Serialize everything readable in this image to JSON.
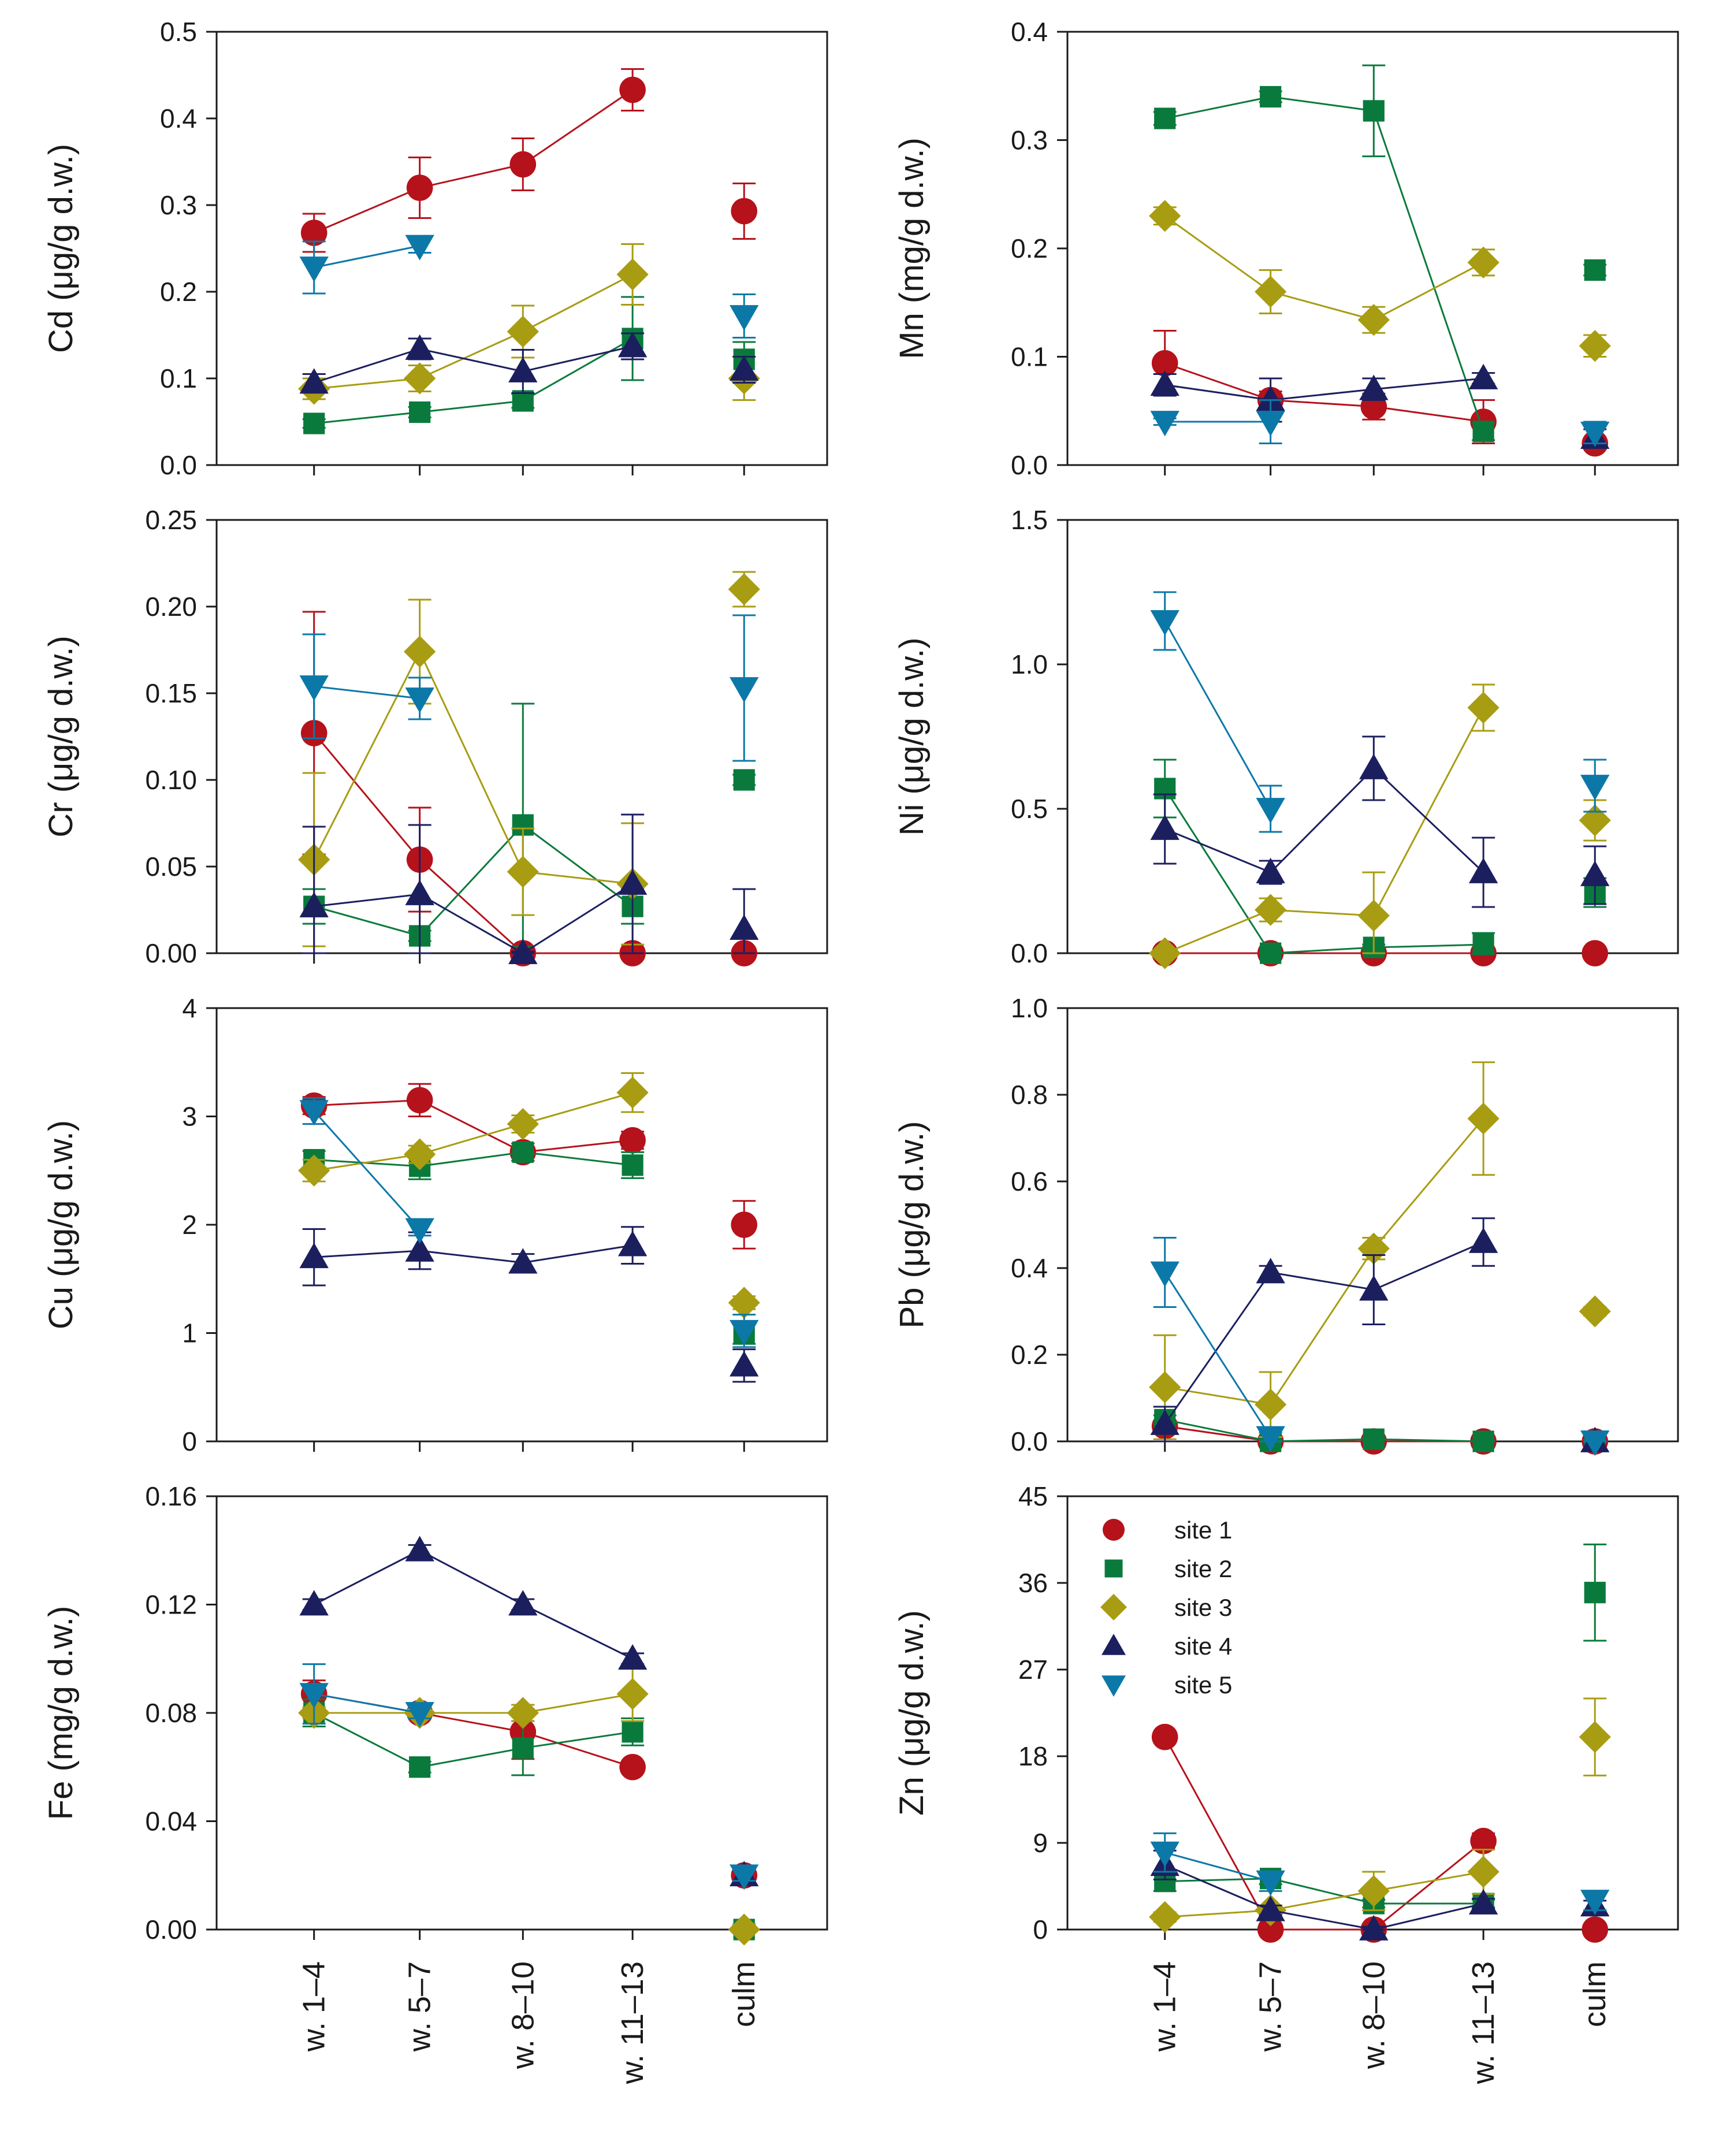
{
  "figure": {
    "description": "Eight panels of element concentrations by leaf group and culm, five sites"
  },
  "colors": {
    "site 1": "#b5121b",
    "site 2": "#0a7a3c",
    "site 3": "#a89c12",
    "site 4": "#1c1f5e",
    "site 5": "#0c78a8"
  },
  "markers": {
    "site 1": "circle",
    "site 2": "square",
    "site 3": "diamond",
    "site 4": "triangle-up",
    "site 5": "triangle-down"
  },
  "chart_data": [
    {
      "type": "line",
      "panel": "Cd",
      "ylabel": "Cd (μg/g d.w.)",
      "ylim": [
        0,
        0.5
      ],
      "yticks": [
        "0.0",
        "0.1",
        "0.2",
        "0.3",
        "0.4",
        "0.5"
      ],
      "categories": [
        "w. 1–4",
        "w. 5–7",
        "w. 8–10",
        "w. 11–13",
        "culm"
      ],
      "series": [
        {
          "name": "site 1",
          "values": [
            0.268,
            0.32,
            0.347,
            0.433,
            0.293
          ],
          "errors": [
            0.022,
            0.035,
            0.03,
            0.024,
            0.032
          ]
        },
        {
          "name": "site 2",
          "values": [
            0.048,
            0.061,
            0.074,
            0.146,
            0.122
          ],
          "errors": [
            0.005,
            0.006,
            0.008,
            0.048,
            0.02
          ]
        },
        {
          "name": "site 3",
          "values": [
            0.088,
            0.1,
            0.154,
            0.22,
            0.1
          ],
          "errors": [
            0.012,
            0.015,
            0.03,
            0.035,
            0.025
          ]
        },
        {
          "name": "site 4",
          "values": [
            0.095,
            0.134,
            0.108,
            0.137,
            0.11
          ],
          "errors": [
            0.01,
            0.012,
            0.025,
            0.015,
            0.015
          ]
        },
        {
          "name": "site 5",
          "values": [
            0.228,
            0.253,
            null,
            null,
            0.172
          ],
          "errors": [
            0.03,
            0.008,
            null,
            null,
            0.025
          ]
        }
      ]
    },
    {
      "type": "line",
      "panel": "Mn",
      "ylabel": "Mn (mg/g d.w.)",
      "ylim": [
        0,
        0.4
      ],
      "yticks": [
        "0.0",
        "0.1",
        "0.2",
        "0.3",
        "0.4"
      ],
      "categories": [
        "w. 1–4",
        "w. 5–7",
        "w. 8–10",
        "w. 11–13",
        "culm"
      ],
      "series": [
        {
          "name": "site 1",
          "values": [
            0.094,
            0.06,
            0.054,
            0.04,
            0.02
          ],
          "errors": [
            0.03,
            0.008,
            0.012,
            0.02,
            0.005
          ]
        },
        {
          "name": "site 2",
          "values": [
            0.32,
            0.34,
            0.327,
            0.031,
            0.18
          ],
          "errors": [
            0.006,
            0.005,
            0.042,
            0.008,
            0.005
          ]
        },
        {
          "name": "site 3",
          "values": [
            0.23,
            0.16,
            0.134,
            0.187,
            0.11
          ],
          "errors": [
            0.008,
            0.02,
            0.012,
            0.012,
            0.01
          ]
        },
        {
          "name": "site 4",
          "values": [
            0.074,
            0.06,
            0.07,
            0.08,
            0.025
          ],
          "errors": [
            0.01,
            0.02,
            0.01,
            0.005,
            0.008
          ]
        },
        {
          "name": "site 5",
          "values": [
            0.04,
            0.04,
            null,
            null,
            0.03
          ],
          "errors": [
            0.003,
            0.02,
            null,
            null,
            0.01
          ]
        }
      ]
    },
    {
      "type": "line",
      "panel": "Cr",
      "ylabel": "Cr (μg/g d.w.)",
      "ylim": [
        0,
        0.25
      ],
      "yticks": [
        "0.00",
        "0.05",
        "0.10",
        "0.15",
        "0.20",
        "0.25"
      ],
      "categories": [
        "w. 1–4",
        "w. 5–7",
        "w. 8–10",
        "w. 11–13",
        "culm"
      ],
      "series": [
        {
          "name": "site 1",
          "values": [
            0.127,
            0.054,
            0.0,
            0.0,
            0.0
          ],
          "errors": [
            0.07,
            0.03,
            0.001,
            0.001,
            0.001
          ]
        },
        {
          "name": "site 2",
          "values": [
            0.027,
            0.01,
            0.074,
            0.027,
            0.1
          ],
          "errors": [
            0.01,
            0.003,
            0.07,
            0.01,
            0.003
          ]
        },
        {
          "name": "site 3",
          "values": [
            0.054,
            0.174,
            0.047,
            0.04,
            0.21
          ],
          "errors": [
            0.05,
            0.03,
            0.025,
            0.035,
            0.01
          ]
        },
        {
          "name": "site 4",
          "values": [
            0.027,
            0.034,
            0.0,
            0.04,
            0.014
          ],
          "errors": [
            0.046,
            0.04,
            0.001,
            0.04,
            0.023
          ]
        },
        {
          "name": "site 5",
          "values": [
            0.154,
            0.147,
            null,
            null,
            0.153
          ],
          "errors": [
            0.03,
            0.012,
            null,
            null,
            0.042
          ]
        }
      ]
    },
    {
      "type": "line",
      "panel": "Ni",
      "ylabel": "Ni (μg/g d.w.)",
      "ylim": [
        0,
        1.5
      ],
      "yticks": [
        "0.0",
        "0.5",
        "1.0",
        "1.5"
      ],
      "categories": [
        "w. 1–4",
        "w. 5–7",
        "w. 8–10",
        "w. 11–13",
        "culm"
      ],
      "series": [
        {
          "name": "site 1",
          "values": [
            0.0,
            0.0,
            0.0,
            0.0,
            0.0
          ],
          "errors": [
            0.003,
            0.003,
            0.003,
            0.003,
            0.003
          ]
        },
        {
          "name": "site 2",
          "values": [
            0.57,
            0.0,
            0.02,
            0.03,
            0.21
          ],
          "errors": [
            0.1,
            0.003,
            0.01,
            0.04,
            0.05
          ]
        },
        {
          "name": "site 3",
          "values": [
            0.0,
            0.15,
            0.13,
            0.85,
            0.46
          ],
          "errors": [
            0.003,
            0.04,
            0.15,
            0.08,
            0.07
          ]
        },
        {
          "name": "site 4",
          "values": [
            0.43,
            0.28,
            0.64,
            0.28,
            0.27
          ],
          "errors": [
            0.12,
            0.04,
            0.11,
            0.12,
            0.1
          ]
        },
        {
          "name": "site 5",
          "values": [
            1.15,
            0.5,
            null,
            null,
            0.58
          ],
          "errors": [
            0.1,
            0.08,
            null,
            null,
            0.09
          ]
        }
      ]
    },
    {
      "type": "line",
      "panel": "Cu",
      "ylabel": "Cu (μg/g d.w.)",
      "ylim": [
        0,
        4
      ],
      "yticks": [
        "0",
        "1",
        "2",
        "3",
        "4"
      ],
      "categories": [
        "w. 1–4",
        "w. 5–7",
        "w. 8–10",
        "w. 11–13",
        "culm"
      ],
      "series": [
        {
          "name": "site 1",
          "values": [
            3.1,
            3.15,
            2.67,
            2.78,
            2.0
          ],
          "errors": [
            0.08,
            0.15,
            0.08,
            0.08,
            0.22
          ]
        },
        {
          "name": "site 2",
          "values": [
            2.6,
            2.54,
            2.67,
            2.55,
            1.0
          ],
          "errors": [
            0.08,
            0.12,
            0.08,
            0.12,
            0.1
          ]
        },
        {
          "name": "site 3",
          "values": [
            2.5,
            2.65,
            2.93,
            3.22,
            1.28
          ],
          "errors": [
            0.1,
            0.08,
            0.08,
            0.18,
            0.06
          ]
        },
        {
          "name": "site 4",
          "values": [
            1.7,
            1.76,
            1.65,
            1.81,
            0.7
          ],
          "errors": [
            0.26,
            0.17,
            0.08,
            0.17,
            0.15
          ]
        },
        {
          "name": "site 5",
          "values": [
            3.05,
            1.96,
            null,
            null,
            1.02
          ],
          "errors": [
            0.12,
            0.06,
            null,
            null,
            0.15
          ]
        }
      ]
    },
    {
      "type": "line",
      "panel": "Pb",
      "ylabel": "Pb (μg/g d.w.)",
      "ylim": [
        0,
        1.0
      ],
      "yticks": [
        "0.0",
        "0.2",
        "0.4",
        "0.6",
        "0.8",
        "1.0"
      ],
      "categories": [
        "w. 1–4",
        "w. 5–7",
        "w. 8–10",
        "w. 11–13",
        "culm"
      ],
      "series": [
        {
          "name": "site 1",
          "values": [
            0.035,
            0.0,
            0.0,
            0.0,
            0.0
          ],
          "errors": [
            0.01,
            0.003,
            0.003,
            0.003,
            0.003
          ]
        },
        {
          "name": "site 2",
          "values": [
            0.05,
            0.0,
            0.005,
            0.0,
            0.0
          ],
          "errors": [
            0.01,
            0.003,
            0.003,
            0.003,
            0.003
          ]
        },
        {
          "name": "site 3",
          "values": [
            0.125,
            0.085,
            0.445,
            0.745,
            0.3
          ],
          "errors": [
            0.12,
            0.075,
            0.025,
            0.13,
            0.01
          ]
        },
        {
          "name": "site 4",
          "values": [
            0.04,
            0.39,
            0.35,
            0.46,
            0.0
          ],
          "errors": [
            0.04,
            0.015,
            0.08,
            0.055,
            0.003
          ]
        },
        {
          "name": "site 5",
          "values": [
            0.39,
            0.01,
            null,
            null,
            0.0
          ],
          "errors": [
            0.08,
            0.01,
            null,
            null,
            0.003
          ]
        }
      ]
    },
    {
      "type": "line",
      "panel": "Fe",
      "ylabel": "Fe (mg/g d.w.)",
      "ylim": [
        0,
        0.16
      ],
      "yticks": [
        "0.00",
        "0.04",
        "0.08",
        "0.12",
        "0.16"
      ],
      "categories": [
        "w. 1–4",
        "w. 5–7",
        "w. 8–10",
        "w. 11–13",
        "culm"
      ],
      "series": [
        {
          "name": "site 1",
          "values": [
            0.087,
            0.08,
            0.073,
            0.06,
            0.02
          ],
          "errors": [
            0.005,
            0.002,
            0.01,
            0.002,
            0.002
          ]
        },
        {
          "name": "site 2",
          "values": [
            0.08,
            0.06,
            0.067,
            0.073,
            0.0
          ],
          "errors": [
            0.005,
            0.002,
            0.01,
            0.005,
            0.002
          ]
        },
        {
          "name": "site 3",
          "values": [
            0.08,
            0.08,
            0.08,
            0.087,
            0.0
          ],
          "errors": [
            0.002,
            0.002,
            0.003,
            0.01,
            0.002
          ]
        },
        {
          "name": "site 4",
          "values": [
            0.12,
            0.14,
            0.12,
            0.1,
            0.02
          ],
          "errors": [
            0.002,
            0.002,
            0.002,
            0.002,
            0.002
          ]
        },
        {
          "name": "site 5",
          "values": [
            0.087,
            0.08,
            null,
            null,
            0.02
          ],
          "errors": [
            0.011,
            0.002,
            null,
            null,
            0.002
          ]
        }
      ]
    },
    {
      "type": "line",
      "panel": "Zn",
      "ylabel": "Zn (μg/g d.w.)",
      "ylim": [
        0,
        45
      ],
      "yticks": [
        "0",
        "9",
        "18",
        "27",
        "36",
        "45"
      ],
      "categories": [
        "w. 1–4",
        "w. 5–7",
        "w. 8–10",
        "w. 11–13",
        "culm"
      ],
      "series": [
        {
          "name": "site 1",
          "values": [
            20,
            0,
            0,
            9.2,
            0
          ],
          "errors": [
            0.5,
            0.3,
            0.3,
            0.8,
            0.3
          ]
        },
        {
          "name": "site 2",
          "values": [
            5,
            5.3,
            2.7,
            2.7,
            35
          ],
          "errors": [
            1.0,
            0.6,
            0.4,
            0.4,
            5.0
          ]
        },
        {
          "name": "site 3",
          "values": [
            1.3,
            2,
            4,
            6,
            20
          ],
          "errors": [
            0.5,
            0.5,
            2.0,
            2.3,
            4.0
          ]
        },
        {
          "name": "site 4",
          "values": [
            6.7,
            2,
            0,
            2.7,
            2.5
          ],
          "errors": [
            1.5,
            0.5,
            0.3,
            0.5,
            0.5
          ]
        },
        {
          "name": "site 5",
          "values": [
            8,
            5,
            null,
            null,
            3
          ],
          "errors": [
            2.0,
            1.0,
            null,
            null,
            1.0
          ]
        }
      ],
      "legend": {
        "placement": "top-left",
        "entries": [
          "site 1",
          "site 2",
          "site 3",
          "site 4",
          "site 5"
        ]
      }
    }
  ],
  "xaxis_labels": {
    "left": [
      "w. 1–4",
      "w. 5–7",
      "w. 8–10",
      "w. 11–13",
      "culm"
    ],
    "right": [
      "w. 1–4",
      "w. 5–7",
      "w. 8–10",
      "w. 11–13",
      "culm"
    ]
  }
}
